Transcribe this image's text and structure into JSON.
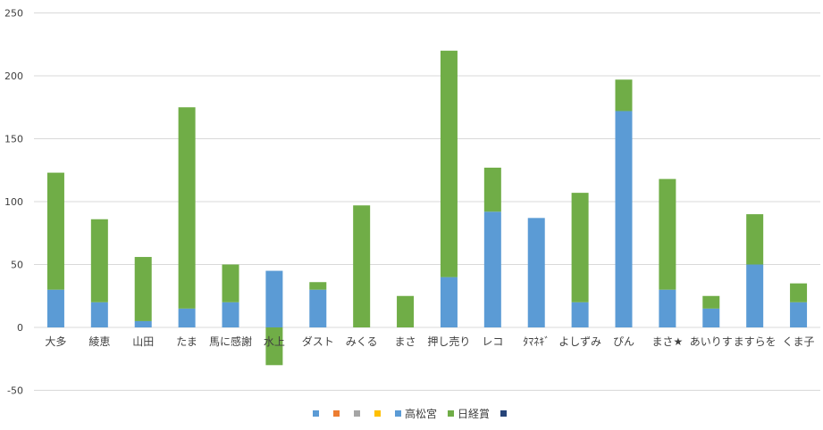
{
  "chart_data": {
    "type": "bar",
    "stacked": true,
    "categories": [
      "大多",
      "綾恵",
      "山田",
      "たま",
      "馬に感謝",
      "水上",
      "ダスト",
      "みくる",
      "まさ",
      "押し売り",
      "レコ",
      "ﾀﾏﾈｷﾞ",
      "よしずみ",
      "ぴん",
      "まさ★",
      "あいりす",
      "ますらを",
      "くま子"
    ],
    "ylim": [
      -50,
      250
    ],
    "yticks": [
      -50,
      0,
      50,
      100,
      150,
      200,
      250
    ],
    "grid": true,
    "legend_position": "bottom",
    "series": [
      {
        "name": "",
        "color": "#5b9bd5",
        "values": [
          0,
          0,
          0,
          0,
          0,
          0,
          0,
          0,
          0,
          0,
          0,
          0,
          0,
          0,
          0,
          0,
          0,
          0
        ]
      },
      {
        "name": "",
        "color": "#ed7d31",
        "values": [
          0,
          0,
          0,
          0,
          0,
          0,
          0,
          0,
          0,
          0,
          0,
          0,
          0,
          0,
          0,
          0,
          0,
          0
        ]
      },
      {
        "name": "",
        "color": "#a5a5a5",
        "values": [
          0,
          0,
          0,
          0,
          0,
          0,
          0,
          0,
          0,
          0,
          0,
          0,
          0,
          0,
          0,
          0,
          0,
          0
        ]
      },
      {
        "name": "",
        "color": "#ffc000",
        "values": [
          0,
          0,
          0,
          0,
          0,
          0,
          0,
          0,
          0,
          0,
          0,
          0,
          0,
          0,
          0,
          0,
          0,
          0
        ]
      },
      {
        "name": "高松宮",
        "color": "#5b9bd5",
        "values": [
          30,
          20,
          5,
          15,
          20,
          45,
          30,
          0,
          0,
          40,
          92,
          87,
          20,
          172,
          30,
          15,
          50,
          20
        ]
      },
      {
        "name": "日経賞",
        "color": "#70ad47",
        "values": [
          93,
          66,
          51,
          160,
          30,
          -30,
          6,
          97,
          25,
          180,
          35,
          0,
          87,
          25,
          88,
          10,
          40,
          15
        ]
      },
      {
        "name": "",
        "color": "#264478",
        "values": [
          0,
          0,
          0,
          0,
          0,
          0,
          0,
          0,
          0,
          0,
          0,
          0,
          0,
          0,
          0,
          0,
          0,
          0
        ]
      }
    ]
  }
}
